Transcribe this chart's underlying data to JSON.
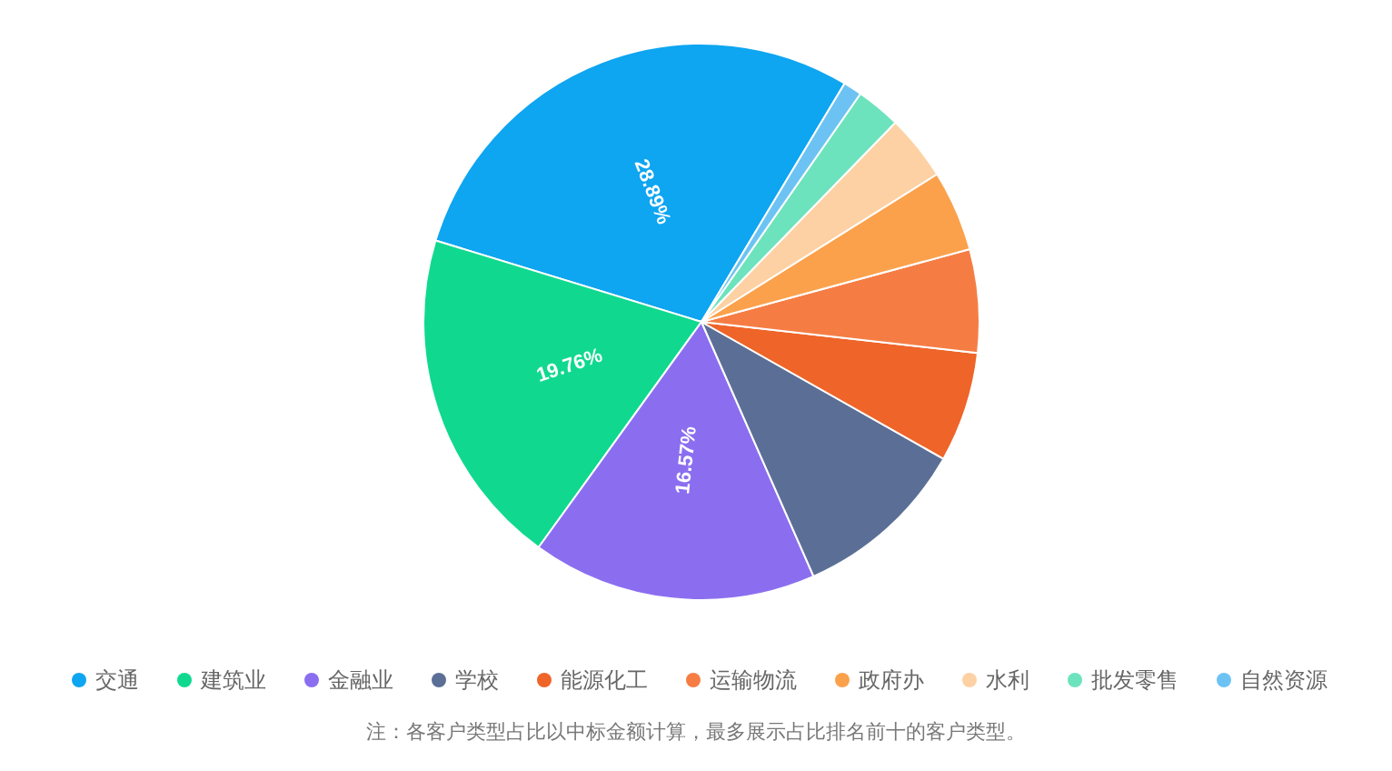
{
  "chart_data": {
    "type": "pie",
    "categories": [
      "交通",
      "建筑业",
      "金融业",
      "学校",
      "能源化工",
      "运输物流",
      "政府办",
      "水利",
      "批发零售",
      "自然资源"
    ],
    "values": [
      28.89,
      19.76,
      16.57,
      10.2,
      6.4,
      6.0,
      4.7,
      3.8,
      2.6,
      1.08
    ],
    "value_labels": [
      "28.89%",
      "19.76%",
      "16.57%",
      null,
      null,
      null,
      null,
      null,
      null,
      null
    ],
    "colors": [
      "#0ea5f1",
      "#10d98f",
      "#8b6ef0",
      "#5b6f96",
      "#ef6428",
      "#f57d44",
      "#fba14b",
      "#fdd1a3",
      "#6de3bd",
      "#6cc3f3"
    ],
    "legend": "bottom",
    "annotations": [
      "注：各客户类型占比以中标金额计算，最多展示占比排名前十的客户类型。"
    ]
  }
}
